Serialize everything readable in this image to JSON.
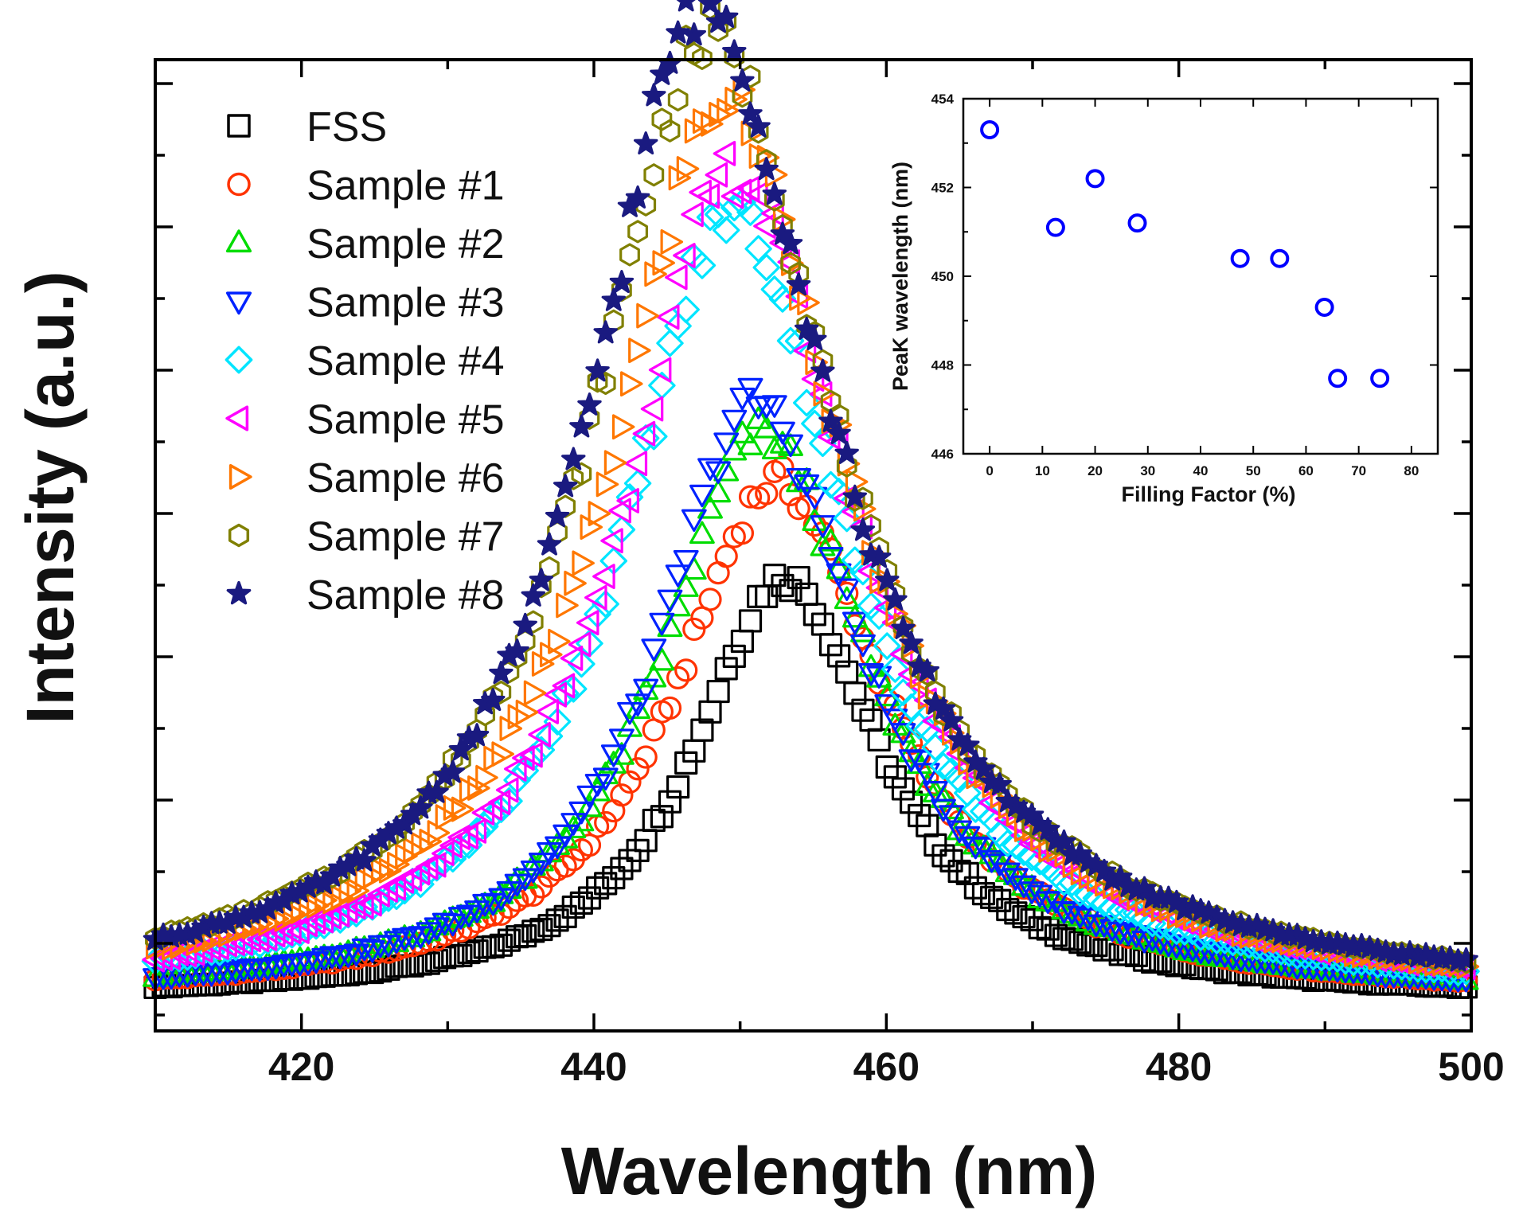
{
  "chart_data": [
    {
      "type": "scatter",
      "xlabel": "Wavelength (nm)",
      "ylabel": "Intensity (a.u.)",
      "xlim": [
        410,
        500
      ],
      "ylim": [
        0,
        1.0
      ],
      "x_ticks": [
        420,
        440,
        460,
        480,
        500
      ],
      "y_tick_labels": false,
      "legend": "top-left",
      "series": [
        {
          "name": "FSS",
          "marker": "square",
          "color": "#000000",
          "peak_x": 453.0,
          "peak_y": 0.53,
          "hw_left": 7.5,
          "hw_right": 8.0
        },
        {
          "name": "Sample #1",
          "marker": "circle",
          "color": "#ff3300",
          "peak_x": 452.5,
          "peak_y": 0.65,
          "hw_left": 8.5,
          "hw_right": 9.0
        },
        {
          "name": "Sample #2",
          "marker": "triangle-up",
          "color": "#00dd00",
          "peak_x": 451.5,
          "peak_y": 0.71,
          "hw_left": 8.5,
          "hw_right": 9.0
        },
        {
          "name": "Sample #3",
          "marker": "triangle-down",
          "color": "#0022ff",
          "peak_x": 451.0,
          "peak_y": 0.75,
          "hw_left": 8.0,
          "hw_right": 9.0
        },
        {
          "name": "Sample #4",
          "marker": "diamond",
          "color": "#00e5ff",
          "peak_x": 449.5,
          "peak_y": 0.99,
          "hw_left": 9.0,
          "hw_right": 9.5
        },
        {
          "name": "Sample #5",
          "marker": "triangle-left",
          "color": "#ff00ff",
          "peak_x": 449.5,
          "peak_y": 1.04,
          "hw_left": 9.0,
          "hw_right": 10.0
        },
        {
          "name": "Sample #6",
          "marker": "triangle-right",
          "color": "#ff7700",
          "peak_x": 449.0,
          "peak_y": 1.13,
          "hw_left": 9.5,
          "hw_right": 10.0
        },
        {
          "name": "Sample #7",
          "marker": "hexagon",
          "color": "#808000",
          "peak_x": 448.0,
          "peak_y": 1.21,
          "hw_left": 10.0,
          "hw_right": 10.5
        },
        {
          "name": "Sample #8",
          "marker": "star",
          "color": "#1a1a80",
          "peak_x": 447.5,
          "peak_y": 1.25,
          "hw_left": 9.5,
          "hw_right": 10.5
        }
      ]
    },
    {
      "type": "scatter",
      "xlabel": "Filling Factor (%)",
      "ylabel": "PeaK wavelength (nm)",
      "xlim": [
        -5,
        85
      ],
      "ylim": [
        446,
        454
      ],
      "x_ticks": [
        0,
        10,
        20,
        30,
        40,
        50,
        60,
        70,
        80
      ],
      "y_ticks": [
        446,
        448,
        450,
        452,
        454
      ],
      "marker": "circle",
      "color": "#0000ff",
      "x": [
        0,
        12.5,
        20,
        28,
        47.5,
        55,
        63.5,
        66,
        74
      ],
      "y": [
        453.3,
        451.1,
        452.2,
        451.2,
        450.4,
        450.4,
        449.3,
        447.7,
        447.7
      ]
    }
  ]
}
